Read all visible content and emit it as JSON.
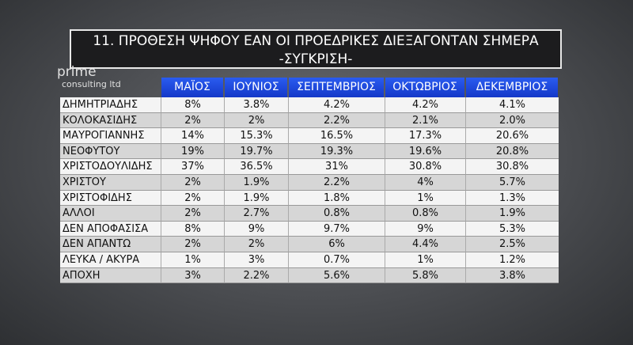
{
  "header": {
    "title": "11. ΠΡΟΘΕΣΗ ΨΗΦΟΥ ΕΑΝ ΟΙ ΠΡΟΕΔΡΙΚΕΣ ΔΙΕΞΑΓΟΝΤΑΝ ΣΗΜΕΡΑ",
    "subtitle": "-ΣΥΓΚΡΙΣΗ-"
  },
  "logo": {
    "name": "prime",
    "tagline": "consulting ltd"
  },
  "table": {
    "columns": [
      "ΜΑΪΟΣ",
      "ΙΟΥΝΙΟΣ",
      "ΣΕΠΤΕΜΒΡΙΟΣ",
      "ΟΚΤΩΒΡΙΟΣ",
      "ΔΕΚΕΜΒΡΙΟΣ"
    ],
    "rows": [
      [
        "ΔΗΜΗΤΡΙΑΔΗΣ",
        "8%",
        "3.8%",
        "4.2%",
        "4.2%",
        "4.1%"
      ],
      [
        "ΚΟΛΟΚΑΣΙΔΗΣ",
        "2%",
        "2%",
        "2.2%",
        "2.1%",
        "2.0%"
      ],
      [
        "ΜΑΥΡΟΓΙΑΝΝΗΣ",
        "14%",
        "15.3%",
        "16.5%",
        "17.3%",
        "20.6%"
      ],
      [
        "ΝΕΟΦΥΤΟΥ",
        "19%",
        "19.7%",
        "19.3%",
        "19.6%",
        "20.8%"
      ],
      [
        "ΧΡΙΣΤΟΔΟΥΛΙΔΗΣ",
        "37%",
        "36.5%",
        "31%",
        "30.8%",
        "30.8%"
      ],
      [
        "ΧΡΙΣΤΟΥ",
        "2%",
        "1.9%",
        "2.2%",
        "4%",
        "5.7%"
      ],
      [
        "ΧΡΙΣΤΟΦΙΔΗΣ",
        "2%",
        "1.9%",
        "1.8%",
        "1%",
        "1.3%"
      ],
      [
        "ΑΛΛΟΙ",
        "2%",
        "2.7%",
        "0.8%",
        "0.8%",
        "1.9%"
      ],
      [
        "ΔΕΝ ΑΠΟΦΑΣΙΣΑ",
        "8%",
        "9%",
        "9.7%",
        "9%",
        "5.3%"
      ],
      [
        "ΔΕΝ ΑΠΑΝΤΩ",
        "2%",
        "2%",
        "6%",
        "4.4%",
        "2.5%"
      ],
      [
        "ΛΕΥΚΑ / ΑΚΥΡΑ",
        "1%",
        "3%",
        "0.7%",
        "1%",
        "1.2%"
      ],
      [
        "ΑΠΟΧΗ",
        "3%",
        "2.2%",
        "5.6%",
        "5.8%",
        "3.8%"
      ]
    ]
  }
}
